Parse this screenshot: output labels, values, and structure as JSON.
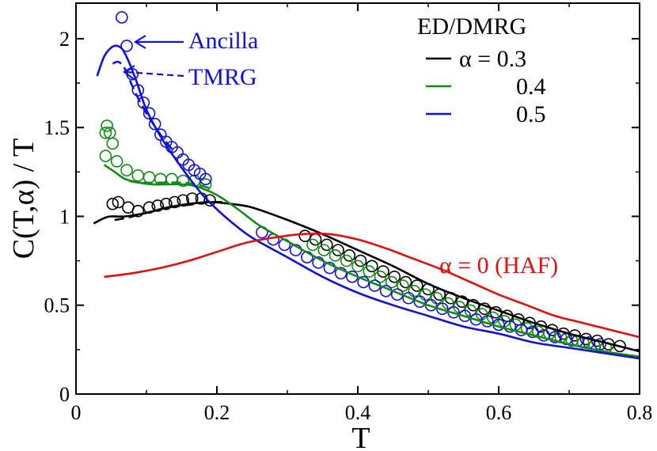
{
  "chart_data": {
    "type": "line",
    "xlabel": "T",
    "ylabel": "C(T,α)  / T",
    "xlim": [
      0,
      0.8
    ],
    "ylim": [
      0,
      2.2
    ],
    "x_ticks": [
      0,
      0.2,
      0.4,
      0.6,
      0.8
    ],
    "x_tick_labels": [
      "0",
      "0.2",
      "0.4",
      "0.6",
      "0.8"
    ],
    "y_ticks": [
      0,
      0.5,
      1,
      1.5,
      2
    ],
    "y_tick_labels": [
      "0",
      "0.5",
      "1",
      "1.5",
      "2"
    ],
    "legend": {
      "title": "ED/DMRG",
      "placement": "top-right",
      "entries": [
        {
          "label": "α = 0.3",
          "color": "#000000"
        },
        {
          "label": "0.4",
          "color": "#138a13"
        },
        {
          "label": "0.5",
          "color": "#1010dd"
        }
      ]
    },
    "annotations": {
      "ancilla": "Ancilla",
      "tmrg": "TMRG",
      "haf": "α = 0 (HAF)"
    },
    "colors": {
      "black": "#000000",
      "green": "#138a13",
      "blue": "#1010dd",
      "red": "#e01010"
    },
    "series": [
      {
        "name": "α = 0.3 Ancilla",
        "alpha": 0.3,
        "method": "Ancilla",
        "style": "solid",
        "color": "#000000",
        "x": [
          0.025,
          0.04,
          0.05,
          0.07,
          0.1,
          0.13,
          0.16,
          0.19,
          0.22,
          0.25,
          0.3,
          0.35,
          0.4,
          0.45,
          0.5,
          0.55,
          0.6,
          0.65,
          0.7,
          0.75,
          0.8
        ],
        "y": [
          0.96,
          0.99,
          1.0,
          1.0,
          1.02,
          1.05,
          1.07,
          1.08,
          1.07,
          1.05,
          0.98,
          0.9,
          0.81,
          0.72,
          0.62,
          0.54,
          0.47,
          0.4,
          0.34,
          0.29,
          0.24
        ]
      },
      {
        "name": "α = 0.3 TMRG",
        "alpha": 0.3,
        "method": "TMRG",
        "style": "dashed",
        "color": "#000000",
        "x": [
          0.055,
          0.07,
          0.09,
          0.11,
          0.13,
          0.15,
          0.17,
          0.19,
          0.21
        ],
        "y": [
          0.98,
          0.99,
          1.01,
          1.03,
          1.05,
          1.06,
          1.07,
          1.08,
          1.08
        ]
      },
      {
        "name": "α = 0.3 ED/DMRG",
        "alpha": 0.3,
        "method": "ED/DMRG",
        "style": "markers",
        "color": "#000000",
        "x": [
          0.052,
          0.06,
          0.074,
          0.088,
          0.104,
          0.116,
          0.128,
          0.14,
          0.152,
          0.165,
          0.178,
          0.19,
          0.325,
          0.34,
          0.356,
          0.372,
          0.388,
          0.404,
          0.42,
          0.436,
          0.452,
          0.468,
          0.484,
          0.5,
          0.516,
          0.532,
          0.548,
          0.564,
          0.58,
          0.596,
          0.612,
          0.628,
          0.644,
          0.66,
          0.676,
          0.692,
          0.708,
          0.724,
          0.74,
          0.756,
          0.772
        ],
        "y": [
          1.07,
          1.08,
          1.05,
          1.03,
          1.05,
          1.06,
          1.07,
          1.08,
          1.09,
          1.1,
          1.1,
          1.09,
          0.89,
          0.87,
          0.84,
          0.81,
          0.78,
          0.75,
          0.72,
          0.69,
          0.66,
          0.63,
          0.61,
          0.59,
          0.56,
          0.54,
          0.52,
          0.5,
          0.48,
          0.46,
          0.44,
          0.42,
          0.4,
          0.38,
          0.36,
          0.34,
          0.33,
          0.31,
          0.3,
          0.28,
          0.27
        ]
      },
      {
        "name": "α = 0.4 Ancilla",
        "alpha": 0.4,
        "method": "Ancilla",
        "style": "solid",
        "color": "#138a13",
        "x": [
          0.04,
          0.055,
          0.07,
          0.09,
          0.11,
          0.13,
          0.15,
          0.17,
          0.2,
          0.23,
          0.26,
          0.3,
          0.35,
          0.4,
          0.45,
          0.5,
          0.55,
          0.6,
          0.65,
          0.7,
          0.75,
          0.8
        ],
        "y": [
          1.29,
          1.25,
          1.21,
          1.19,
          1.18,
          1.18,
          1.18,
          1.17,
          1.12,
          1.04,
          0.95,
          0.86,
          0.75,
          0.66,
          0.58,
          0.5,
          0.44,
          0.38,
          0.33,
          0.28,
          0.24,
          0.21
        ]
      },
      {
        "name": "α = 0.4 TMRG",
        "alpha": 0.4,
        "method": "TMRG",
        "style": "dashed",
        "color": "#138a13",
        "x": [
          0.075,
          0.09,
          0.11,
          0.13,
          0.15,
          0.17,
          0.19
        ],
        "y": [
          1.2,
          1.19,
          1.19,
          1.19,
          1.19,
          1.18,
          1.16
        ]
      },
      {
        "name": "α = 0.4 ED/DMRG",
        "alpha": 0.4,
        "method": "ED/DMRG",
        "style": "markers",
        "color": "#138a13",
        "x": [
          0.042,
          0.044,
          0.048,
          0.052,
          0.042,
          0.058,
          0.072,
          0.088,
          0.104,
          0.12,
          0.136,
          0.152,
          0.168,
          0.184,
          0.336,
          0.352,
          0.368,
          0.384,
          0.4,
          0.416,
          0.432,
          0.448,
          0.464,
          0.48,
          0.496,
          0.512,
          0.528,
          0.544,
          0.56,
          0.576,
          0.592,
          0.608,
          0.624,
          0.64,
          0.656,
          0.672,
          0.688,
          0.704,
          0.72,
          0.736,
          0.752
        ],
        "y": [
          1.47,
          1.51,
          1.47,
          1.41,
          1.34,
          1.31,
          1.26,
          1.23,
          1.22,
          1.21,
          1.21,
          1.2,
          1.2,
          1.18,
          0.84,
          0.81,
          0.78,
          0.75,
          0.72,
          0.69,
          0.66,
          0.63,
          0.61,
          0.58,
          0.56,
          0.54,
          0.51,
          0.49,
          0.47,
          0.45,
          0.43,
          0.41,
          0.39,
          0.37,
          0.35,
          0.34,
          0.32,
          0.3,
          0.29,
          0.27,
          0.26
        ]
      },
      {
        "name": "α = 0.5 Ancilla",
        "alpha": 0.5,
        "method": "Ancilla",
        "style": "solid",
        "color": "#1010dd",
        "x": [
          0.03,
          0.04,
          0.05,
          0.058,
          0.066,
          0.075,
          0.085,
          0.1,
          0.12,
          0.14,
          0.16,
          0.18,
          0.2,
          0.22,
          0.25,
          0.3,
          0.35,
          0.4,
          0.45,
          0.5,
          0.55,
          0.6,
          0.65,
          0.7,
          0.75,
          0.8
        ],
        "y": [
          1.79,
          1.9,
          1.95,
          1.96,
          1.94,
          1.87,
          1.77,
          1.6,
          1.45,
          1.33,
          1.22,
          1.12,
          1.04,
          0.97,
          0.88,
          0.77,
          0.66,
          0.57,
          0.5,
          0.44,
          0.38,
          0.34,
          0.29,
          0.26,
          0.23,
          0.2
        ]
      },
      {
        "name": "α = 0.5 TMRG",
        "alpha": 0.5,
        "method": "TMRG",
        "style": "dashed",
        "color": "#1010dd",
        "x": [
          0.052,
          0.06,
          0.068,
          0.076,
          0.085,
          0.1,
          0.12,
          0.14
        ],
        "y": [
          1.86,
          1.87,
          1.84,
          1.77,
          1.69,
          1.58,
          1.46,
          1.36
        ]
      },
      {
        "name": "α = 0.5 ED/DMRG",
        "alpha": 0.5,
        "method": "ED/DMRG",
        "style": "markers",
        "color": "#1010dd",
        "x": [
          0.065,
          0.072,
          0.08,
          0.088,
          0.096,
          0.104,
          0.112,
          0.12,
          0.128,
          0.136,
          0.144,
          0.152,
          0.16,
          0.168,
          0.176,
          0.184,
          0.264,
          0.28,
          0.296,
          0.312,
          0.328,
          0.344,
          0.36,
          0.376,
          0.392,
          0.408,
          0.424,
          0.44,
          0.456,
          0.472,
          0.488,
          0.504,
          0.52,
          0.536,
          0.552,
          0.568,
          0.584,
          0.6,
          0.616,
          0.632,
          0.648,
          0.664,
          0.68,
          0.696,
          0.712,
          0.728,
          0.744
        ],
        "y": [
          2.12,
          1.96,
          1.8,
          1.71,
          1.64,
          1.58,
          1.52,
          1.46,
          1.42,
          1.39,
          1.36,
          1.32,
          1.29,
          1.26,
          1.24,
          1.21,
          0.91,
          0.87,
          0.84,
          0.81,
          0.77,
          0.74,
          0.71,
          0.68,
          0.66,
          0.63,
          0.61,
          0.58,
          0.56,
          0.54,
          0.52,
          0.5,
          0.48,
          0.46,
          0.44,
          0.42,
          0.41,
          0.39,
          0.38,
          0.36,
          0.35,
          0.33,
          0.32,
          0.31,
          0.3,
          0.29,
          0.28
        ]
      },
      {
        "name": "α = 0 (HAF)",
        "alpha": 0,
        "method": "HAF",
        "style": "solid",
        "color": "#e01010",
        "x": [
          0.04,
          0.08,
          0.12,
          0.16,
          0.2,
          0.24,
          0.28,
          0.32,
          0.36,
          0.4,
          0.44,
          0.48,
          0.52,
          0.56,
          0.6,
          0.64,
          0.68,
          0.72,
          0.76,
          0.8
        ],
        "y": [
          0.66,
          0.68,
          0.71,
          0.75,
          0.8,
          0.85,
          0.88,
          0.9,
          0.9,
          0.87,
          0.82,
          0.76,
          0.7,
          0.63,
          0.56,
          0.5,
          0.44,
          0.4,
          0.36,
          0.32
        ]
      }
    ]
  }
}
